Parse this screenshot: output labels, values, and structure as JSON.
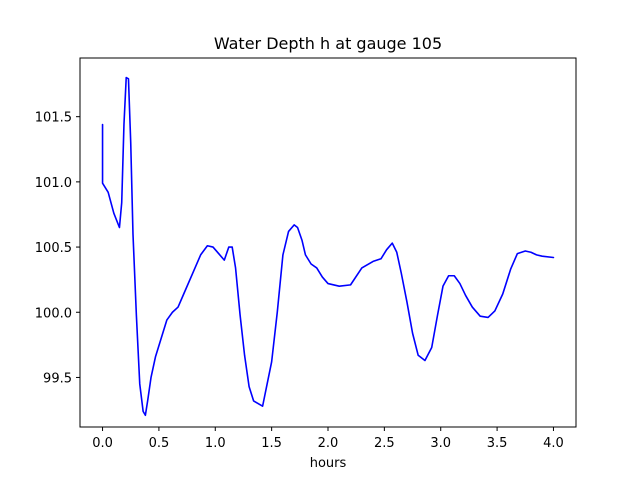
{
  "chart_data": {
    "type": "line",
    "title": "Water Depth h at gauge 105",
    "xlabel": "hours",
    "ylabel": "",
    "xlim": [
      -0.2,
      4.2
    ],
    "ylim": [
      99.12,
      101.95
    ],
    "xticks": [
      0.0,
      0.5,
      1.0,
      1.5,
      2.0,
      2.5,
      3.0,
      3.5,
      4.0
    ],
    "xtick_labels": [
      "0.0",
      "0.5",
      "1.0",
      "1.5",
      "2.0",
      "2.5",
      "3.0",
      "3.5",
      "4.0"
    ],
    "yticks": [
      99.5,
      100.0,
      100.5,
      101.0,
      101.5
    ],
    "ytick_labels": [
      "99.5",
      "100.0",
      "100.5",
      "101.0",
      "101.5"
    ],
    "grid": false,
    "legend": "none",
    "colors": {
      "line": "#0000ff",
      "axes": "#000000",
      "background": "#ffffff"
    },
    "series": [
      {
        "x": [
          0.0,
          0.0,
          0.0,
          0.05,
          0.1,
          0.15,
          0.17,
          0.19,
          0.21,
          0.23,
          0.25,
          0.27,
          0.3,
          0.33,
          0.36,
          0.38,
          0.4,
          0.43,
          0.47,
          0.52,
          0.57,
          0.62,
          0.67,
          0.72,
          0.8,
          0.87,
          0.93,
          0.98,
          1.03,
          1.08,
          1.12,
          1.15,
          1.18,
          1.22,
          1.26,
          1.3,
          1.34,
          1.38,
          1.42,
          1.46,
          1.5,
          1.55,
          1.6,
          1.65,
          1.7,
          1.73,
          1.77,
          1.8,
          1.85,
          1.9,
          1.95,
          2.0,
          2.1,
          2.2,
          2.3,
          2.4,
          2.47,
          2.52,
          2.57,
          2.61,
          2.65,
          2.7,
          2.75,
          2.8,
          2.86,
          2.92,
          2.97,
          3.02,
          3.07,
          3.12,
          3.17,
          3.22,
          3.28,
          3.35,
          3.42,
          3.48,
          3.55,
          3.62,
          3.68,
          3.75,
          3.8,
          3.85,
          3.9,
          4.0
        ],
        "y": [
          101.44,
          100.99,
          100.99,
          100.92,
          100.76,
          100.65,
          100.84,
          101.44,
          101.8,
          101.79,
          101.3,
          100.6,
          99.98,
          99.45,
          99.24,
          99.21,
          99.32,
          99.5,
          99.66,
          99.8,
          99.94,
          100.0,
          100.04,
          100.14,
          100.3,
          100.44,
          100.51,
          100.5,
          100.45,
          100.4,
          100.5,
          100.5,
          100.34,
          99.98,
          99.67,
          99.43,
          99.32,
          99.3,
          99.28,
          99.45,
          99.62,
          100.0,
          100.44,
          100.62,
          100.67,
          100.65,
          100.55,
          100.44,
          100.37,
          100.34,
          100.27,
          100.22,
          100.2,
          100.21,
          100.34,
          100.39,
          100.41,
          100.48,
          100.53,
          100.46,
          100.3,
          100.08,
          99.84,
          99.67,
          99.63,
          99.73,
          99.97,
          100.2,
          100.28,
          100.28,
          100.22,
          100.13,
          100.04,
          99.97,
          99.96,
          100.01,
          100.14,
          100.33,
          100.45,
          100.47,
          100.46,
          100.44,
          100.43,
          100.42
        ]
      }
    ]
  }
}
